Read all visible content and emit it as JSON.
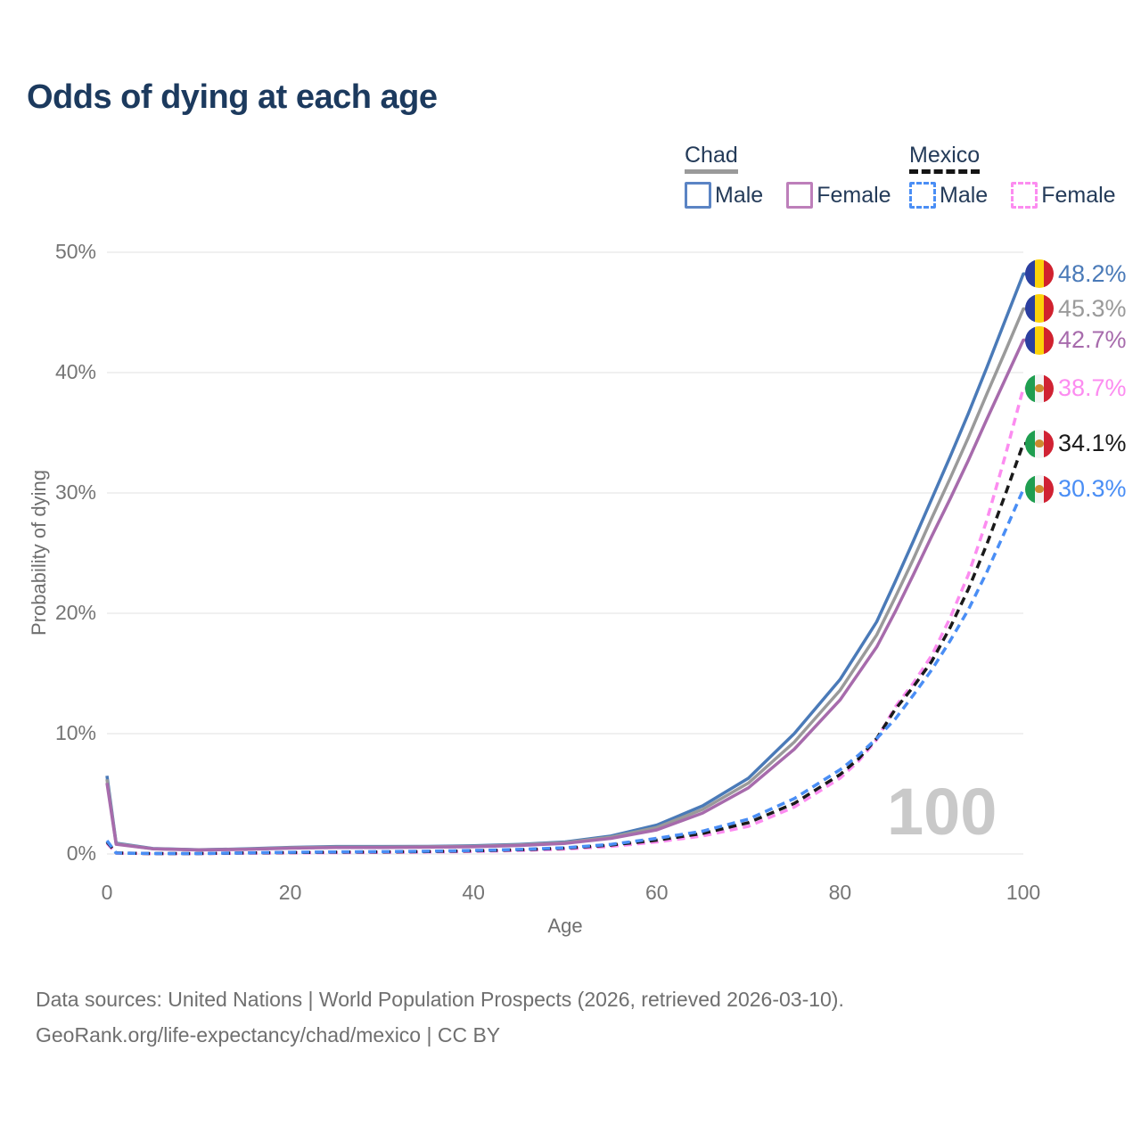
{
  "title": "Odds of dying at each age",
  "legend": {
    "groups": [
      {
        "country": "Chad",
        "underline_style": "solid",
        "underline_color": "#9a9a9a",
        "items": [
          {
            "label": "Male",
            "color": "#5b84c4",
            "dashed": false
          },
          {
            "label": "Female",
            "color": "#bd7fba",
            "dashed": false
          }
        ]
      },
      {
        "country": "Mexico",
        "underline_style": "dashed",
        "underline_color": "#141414",
        "items": [
          {
            "label": "Male",
            "color": "#4a8ef5",
            "dashed": true
          },
          {
            "label": "Female",
            "color": "#fc8cf0",
            "dashed": true
          }
        ]
      }
    ]
  },
  "chart_data": {
    "type": "line",
    "title": "Odds of dying at each age",
    "xlabel": "Age",
    "ylabel": "Probability of dying",
    "xlim": [
      0,
      100
    ],
    "ylim_percent": [
      0,
      50
    ],
    "xticks": [
      0,
      20,
      40,
      60,
      80,
      100
    ],
    "yticks": [
      "0%",
      "10%",
      "20%",
      "30%",
      "40%",
      "50%"
    ],
    "grid": true,
    "legend_position": "top-right",
    "watermark": "100",
    "ages": [
      0,
      1,
      5,
      10,
      15,
      20,
      25,
      30,
      35,
      40,
      45,
      50,
      55,
      60,
      65,
      70,
      75,
      80,
      82,
      84,
      86,
      88,
      90,
      92,
      94,
      96,
      98,
      100
    ],
    "series": [
      {
        "name": "Chad Male",
        "country": "Chad",
        "flag": "chad",
        "style": "solid",
        "color": "#4a7ab8",
        "end_label": "48.2%",
        "end_value": 48.2,
        "values": [
          6.5,
          0.9,
          0.45,
          0.35,
          0.42,
          0.55,
          0.62,
          0.62,
          0.63,
          0.68,
          0.8,
          1.0,
          1.5,
          2.4,
          4.0,
          6.3,
          10.0,
          14.5,
          16.9,
          19.3,
          22.6,
          26.0,
          29.5,
          33.0,
          36.6,
          40.4,
          44.3,
          48.2
        ]
      },
      {
        "name": "Chad Both sexes",
        "country": "Chad",
        "flag": "chad",
        "style": "solid",
        "color": "#9a9a9a",
        "end_label": "45.3%",
        "end_value": 45.3,
        "values": [
          6.2,
          0.85,
          0.44,
          0.34,
          0.4,
          0.52,
          0.58,
          0.58,
          0.6,
          0.64,
          0.75,
          0.94,
          1.4,
          2.2,
          3.7,
          5.9,
          9.3,
          13.6,
          15.9,
          18.2,
          21.3,
          24.5,
          27.9,
          31.2,
          34.6,
          38.2,
          41.7,
          45.3
        ]
      },
      {
        "name": "Chad Female",
        "country": "Chad",
        "flag": "chad",
        "style": "solid",
        "color": "#a76bac",
        "end_label": "42.7%",
        "end_value": 42.7,
        "values": [
          5.9,
          0.8,
          0.43,
          0.33,
          0.38,
          0.48,
          0.53,
          0.54,
          0.56,
          0.6,
          0.7,
          0.88,
          1.3,
          2.0,
          3.4,
          5.5,
          8.7,
          12.8,
          15.0,
          17.2,
          20.1,
          23.2,
          26.4,
          29.5,
          32.7,
          36.1,
          39.4,
          42.7
        ]
      },
      {
        "name": "Mexico Female",
        "country": "Mexico",
        "flag": "mexico",
        "style": "dashed",
        "color": "#fc8cf0",
        "end_label": "38.7%",
        "end_value": 38.7,
        "values": [
          0.9,
          0.07,
          0.03,
          0.03,
          0.06,
          0.09,
          0.11,
          0.13,
          0.16,
          0.21,
          0.29,
          0.41,
          0.63,
          1.0,
          1.5,
          2.3,
          3.9,
          6.3,
          7.7,
          9.5,
          12.2,
          14.2,
          16.5,
          19.6,
          23.2,
          27.7,
          33.0,
          38.7
        ]
      },
      {
        "name": "Mexico Both sexes",
        "country": "Mexico",
        "flag": "mexico",
        "style": "dashed",
        "color": "#1a1a1a",
        "end_label": "34.1%",
        "end_value": 34.1,
        "values": [
          1.0,
          0.08,
          0.04,
          0.04,
          0.08,
          0.12,
          0.15,
          0.17,
          0.2,
          0.26,
          0.35,
          0.48,
          0.74,
          1.15,
          1.7,
          2.6,
          4.2,
          6.6,
          7.9,
          9.6,
          12.0,
          13.9,
          16.0,
          18.8,
          22.0,
          25.7,
          29.8,
          34.1
        ]
      },
      {
        "name": "Mexico Male",
        "country": "Mexico",
        "flag": "mexico",
        "style": "dashed",
        "color": "#4a8ef5",
        "end_label": "30.3%",
        "end_value": 30.3,
        "values": [
          1.1,
          0.08,
          0.04,
          0.04,
          0.09,
          0.14,
          0.17,
          0.19,
          0.23,
          0.29,
          0.38,
          0.52,
          0.8,
          1.3,
          1.9,
          2.9,
          4.6,
          7.0,
          8.2,
          9.6,
          11.2,
          13.2,
          15.3,
          17.7,
          20.3,
          23.4,
          26.8,
          30.3
        ]
      }
    ]
  },
  "flags": {
    "chad": {
      "stripes": [
        "#2b3fa0",
        "#fcd20a",
        "#d0212e"
      ]
    },
    "mexico": {
      "stripes": [
        "#1f9e50",
        "#f4f4f4",
        "#d02233"
      ],
      "emblem_color": "#cd8a2f"
    }
  },
  "colors": {
    "title": "#1c3a5e",
    "axis_text": "#757575",
    "gridline": "#ebebeb",
    "watermark": "#c9c9c9",
    "footer": "#6f6f6f"
  },
  "footer": {
    "line1": "Data sources: United Nations | World Population Prospects (2026, retrieved 2026-03-10).",
    "line2": "GeoRank.org/life-expectancy/chad/mexico | CC BY"
  }
}
